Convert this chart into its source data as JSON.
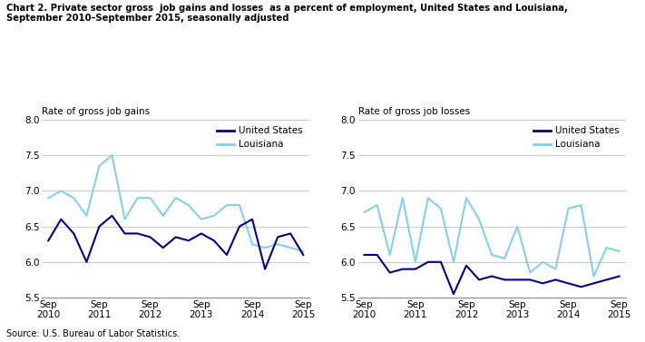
{
  "title_line1": "Chart 2. Private sector gross  job gains and losses  as a percent of employment, United States and Louisiana,",
  "title_line2": "September 2010–September 2015, seasonally adjusted",
  "source": "Source: U.S. Bureau of Labor Statistics.",
  "left_ylabel": "Rate of gross job gains",
  "right_ylabel": "Rate of gross job losses",
  "ylim": [
    5.5,
    8.0
  ],
  "yticks": [
    5.5,
    6.0,
    6.5,
    7.0,
    7.5,
    8.0
  ],
  "x_labels": [
    "Sep\n2010",
    "Sep\n2011",
    "Sep\n2012",
    "Sep\n2013",
    "Sep\n2014",
    "Sep\n2015"
  ],
  "x_positions": [
    0,
    4,
    8,
    12,
    16,
    20
  ],
  "color_us": "#00008B",
  "color_la": "#87CEEB",
  "gains_us": [
    6.3,
    6.6,
    6.4,
    6.0,
    6.5,
    6.65,
    6.4,
    6.4,
    6.35,
    6.2,
    6.35,
    6.3,
    6.4,
    6.3,
    6.1,
    6.5,
    6.6,
    5.9,
    6.35,
    6.4,
    6.1
  ],
  "gains_la": [
    6.9,
    7.0,
    6.9,
    6.65,
    7.35,
    7.5,
    6.6,
    6.9,
    6.9,
    6.65,
    6.9,
    6.8,
    6.6,
    6.65,
    6.8,
    6.8,
    6.25,
    6.2,
    6.25,
    6.2,
    6.15
  ],
  "losses_us": [
    6.1,
    6.1,
    5.85,
    5.9,
    5.9,
    6.0,
    6.0,
    5.55,
    5.95,
    5.75,
    5.8,
    5.75,
    5.75,
    5.75,
    5.7,
    5.75,
    5.7,
    5.65,
    5.7,
    5.75,
    5.8
  ],
  "losses_la": [
    6.7,
    6.8,
    6.1,
    6.9,
    6.0,
    6.9,
    6.75,
    6.0,
    6.9,
    6.6,
    6.1,
    6.05,
    6.5,
    5.85,
    6.0,
    5.9,
    6.75,
    6.8,
    5.8,
    6.2,
    6.15
  ],
  "legend_labels": [
    "United States",
    "Louisiana"
  ],
  "line_width": 1.5,
  "fig_width": 7.11,
  "fig_height": 3.77,
  "background_color": "#ffffff"
}
